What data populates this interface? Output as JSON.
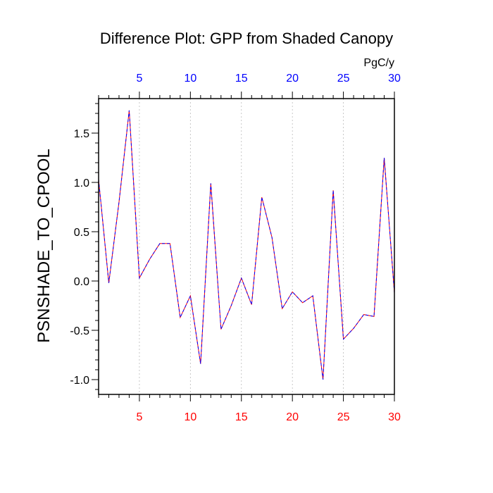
{
  "chart_data": {
    "type": "line",
    "title": "Difference Plot: GPP from Shaded Canopy",
    "top_axis_unit": "PgC/y",
    "ylabel": "PSNSHADE_TO_CPOOL",
    "xlabel": "",
    "xlim": [
      1,
      30
    ],
    "ylim": [
      -1.15,
      1.85
    ],
    "x_ticks": [
      5,
      10,
      15,
      20,
      25,
      30
    ],
    "x_tick_labels": [
      "5",
      "10",
      "15",
      "20",
      "25",
      "30"
    ],
    "y_ticks": [
      -1.0,
      -0.5,
      0.0,
      0.5,
      1.0,
      1.5
    ],
    "y_tick_labels": [
      "-1.0",
      "-0.5",
      "0.0",
      "0.5",
      "1.0",
      "1.5"
    ],
    "grid": "vertical dashed at major x ticks",
    "bottom_tick_color": "#ff0000",
    "top_tick_color": "#0000ff",
    "series": [
      {
        "color_a": "#ff0000",
        "color_b": "#0000ff",
        "style": "dashed",
        "x": [
          1,
          2,
          3,
          4,
          5,
          6,
          7,
          8,
          9,
          10,
          11,
          12,
          13,
          14,
          15,
          16,
          17,
          18,
          19,
          20,
          21,
          22,
          23,
          24,
          25,
          26,
          27,
          28,
          29,
          30
        ],
        "y": [
          1.03,
          -0.02,
          0.8,
          1.73,
          0.03,
          0.22,
          0.38,
          0.38,
          -0.37,
          -0.15,
          -0.84,
          0.99,
          -0.49,
          -0.25,
          0.03,
          -0.24,
          0.85,
          0.44,
          -0.28,
          -0.11,
          -0.22,
          -0.15,
          -1.0,
          0.92,
          -0.59,
          -0.48,
          -0.34,
          -0.36,
          1.25,
          -0.12
        ]
      }
    ]
  }
}
